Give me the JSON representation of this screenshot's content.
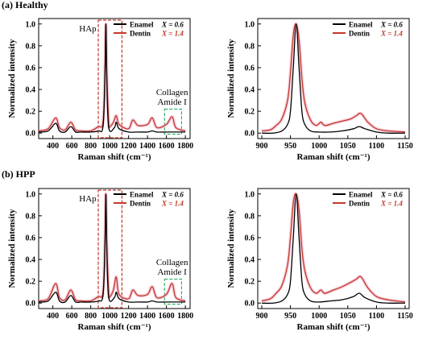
{
  "colors": {
    "enamel": "#000000",
    "dentin": "#c0392b",
    "band": "#f3a6bf",
    "peak_box": "#c0392b",
    "collagen_box": "#27ae60"
  },
  "sections": [
    {
      "label": "(a) Healthy",
      "left": {
        "hap_label": "HAp",
        "collagen_label": "Collagen",
        "amide_label": "Amide I"
      },
      "legend": {
        "enamel": "Enamel",
        "enamel_x": "X = 0.6",
        "dentin": "Dentin",
        "dentin_x": "X = 1.4"
      }
    },
    {
      "label": "(b) HPP",
      "left": {
        "hap_label": "HAp",
        "collagen_label": "Collagen",
        "amide_label": "Amide I"
      },
      "legend": {
        "enamel": "Enamel",
        "enamel_x": "X = 0.6",
        "dentin": "Dentin",
        "dentin_x": "X = 1.4"
      }
    }
  ],
  "axes": {
    "ylabel": "Normalized intensity",
    "xlabel": "Raman shift (cm⁻¹)",
    "left_xticks": [
      "400",
      "600",
      "800",
      "1000",
      "1200",
      "1400",
      "1600",
      "1800"
    ],
    "right_xticks": [
      "900",
      "950",
      "1000",
      "1050",
      "1100",
      "1150"
    ],
    "yticks": [
      "0.0",
      "0.2",
      "0.4",
      "0.6",
      "0.8",
      "1.0"
    ]
  },
  "chart_data": [
    {
      "type": "line",
      "title": "(a) Healthy",
      "xlabel": "Raman shift (cm-1)",
      "ylabel": "Normalized intensity",
      "xlim": [
        250,
        1850
      ],
      "ylim": [
        -0.05,
        1.05
      ],
      "legend": "top-right",
      "annotations": [
        "HAp",
        "Collagen",
        "Amide I"
      ],
      "series": [
        {
          "name": "Enamel X = 0.6",
          "x": [
            250,
            350,
            430,
            470,
            530,
            590,
            640,
            700,
            800,
            880,
            930,
            950,
            960,
            970,
            990,
            1050,
            1070,
            1100,
            1200,
            1300,
            1400,
            1450,
            1500,
            1600,
            1660,
            1700,
            1800
          ],
          "y": [
            0.01,
            0.02,
            0.09,
            0.02,
            0.01,
            0.06,
            0.01,
            0.01,
            0.01,
            0.02,
            0.06,
            0.5,
            1.0,
            0.5,
            0.05,
            0.05,
            0.1,
            0.04,
            0.01,
            0.01,
            0.01,
            0.02,
            0.01,
            0.01,
            0.01,
            0.01,
            0.01
          ]
        },
        {
          "name": "Dentin X = 1.4",
          "x": [
            250,
            350,
            430,
            470,
            530,
            590,
            640,
            700,
            800,
            880,
            930,
            950,
            960,
            970,
            990,
            1003,
            1040,
            1070,
            1100,
            1200,
            1245,
            1300,
            1400,
            1450,
            1500,
            1600,
            1660,
            1700,
            1800
          ],
          "y": [
            0.02,
            0.04,
            0.14,
            0.05,
            0.03,
            0.1,
            0.03,
            0.02,
            0.02,
            0.06,
            0.1,
            0.55,
            1.0,
            0.55,
            0.1,
            0.06,
            0.1,
            0.16,
            0.08,
            0.04,
            0.12,
            0.07,
            0.08,
            0.14,
            0.05,
            0.08,
            0.15,
            0.05,
            0.02
          ]
        }
      ]
    },
    {
      "type": "line",
      "title": "(a) Healthy",
      "xlabel": "Raman shift (cm-1)",
      "ylabel": "Normalized intensity",
      "xlim": [
        893,
        1157
      ],
      "ylim": [
        -0.05,
        1.05
      ],
      "legend": "top-right",
      "series": [
        {
          "name": "Enamel X = 0.6",
          "x": [
            900,
            920,
            935,
            945,
            950,
            955,
            960,
            965,
            970,
            975,
            985,
            1000,
            1020,
            1040,
            1060,
            1070,
            1080,
            1100,
            1120,
            1150
          ],
          "y": [
            0.0,
            0.0,
            0.02,
            0.08,
            0.2,
            0.6,
            1.0,
            0.6,
            0.2,
            0.08,
            0.02,
            0.01,
            0.01,
            0.02,
            0.04,
            0.06,
            0.04,
            0.01,
            0.0,
            0.0
          ]
        },
        {
          "name": "Dentin X = 1.4",
          "x": [
            900,
            915,
            925,
            935,
            945,
            950,
            955,
            960,
            965,
            970,
            975,
            985,
            995,
            1003,
            1010,
            1025,
            1040,
            1055,
            1065,
            1073,
            1085,
            1100,
            1120,
            1150
          ],
          "y": [
            0.02,
            0.03,
            0.07,
            0.13,
            0.3,
            0.55,
            0.9,
            1.0,
            0.85,
            0.5,
            0.28,
            0.12,
            0.07,
            0.1,
            0.07,
            0.09,
            0.11,
            0.13,
            0.16,
            0.18,
            0.1,
            0.04,
            0.02,
            0.01
          ]
        }
      ]
    },
    {
      "type": "line",
      "title": "(b) HPP",
      "xlabel": "Raman shift (cm-1)",
      "ylabel": "Normalized intensity",
      "xlim": [
        250,
        1850
      ],
      "ylim": [
        -0.05,
        1.05
      ],
      "legend": "top-right",
      "annotations": [
        "HAp",
        "Collagen",
        "Amide I"
      ],
      "series": [
        {
          "name": "Enamel X = 0.6",
          "x": [
            250,
            350,
            430,
            470,
            530,
            590,
            640,
            700,
            800,
            880,
            930,
            950,
            960,
            970,
            990,
            1050,
            1070,
            1100,
            1200,
            1300,
            1400,
            1450,
            1500,
            1600,
            1660,
            1700,
            1800
          ],
          "y": [
            0.01,
            0.02,
            0.1,
            0.02,
            0.01,
            0.07,
            0.01,
            0.01,
            0.01,
            0.02,
            0.07,
            0.5,
            1.0,
            0.5,
            0.05,
            0.05,
            0.1,
            0.04,
            0.01,
            0.01,
            0.01,
            0.02,
            0.01,
            0.01,
            0.01,
            0.01,
            0.01
          ]
        },
        {
          "name": "Dentin X = 1.4",
          "x": [
            250,
            350,
            430,
            470,
            530,
            590,
            640,
            700,
            800,
            880,
            930,
            950,
            960,
            970,
            990,
            1003,
            1040,
            1070,
            1100,
            1200,
            1245,
            1300,
            1400,
            1450,
            1500,
            1600,
            1660,
            1700,
            1800
          ],
          "y": [
            0.02,
            0.04,
            0.18,
            0.05,
            0.03,
            0.12,
            0.03,
            0.02,
            0.02,
            0.06,
            0.1,
            0.55,
            1.0,
            0.55,
            0.1,
            0.06,
            0.12,
            0.24,
            0.08,
            0.04,
            0.12,
            0.07,
            0.08,
            0.15,
            0.05,
            0.08,
            0.18,
            0.05,
            0.02
          ]
        }
      ]
    },
    {
      "type": "line",
      "title": "(b) HPP",
      "xlabel": "Raman shift (cm-1)",
      "ylabel": "Normalized intensity",
      "xlim": [
        893,
        1157
      ],
      "ylim": [
        -0.05,
        1.05
      ],
      "legend": "top-right",
      "series": [
        {
          "name": "Enamel X = 0.6",
          "x": [
            900,
            920,
            935,
            945,
            950,
            955,
            960,
            965,
            970,
            975,
            985,
            1000,
            1020,
            1040,
            1060,
            1070,
            1080,
            1100,
            1120,
            1150
          ],
          "y": [
            0.0,
            0.0,
            0.02,
            0.08,
            0.2,
            0.6,
            1.0,
            0.6,
            0.2,
            0.08,
            0.02,
            0.01,
            0.02,
            0.03,
            0.06,
            0.09,
            0.05,
            0.01,
            0.0,
            0.0
          ]
        },
        {
          "name": "Dentin X = 1.4",
          "x": [
            900,
            915,
            925,
            935,
            945,
            950,
            955,
            960,
            965,
            970,
            975,
            985,
            995,
            1003,
            1010,
            1025,
            1040,
            1055,
            1065,
            1073,
            1085,
            1100,
            1120,
            1150
          ],
          "y": [
            0.02,
            0.04,
            0.09,
            0.16,
            0.35,
            0.6,
            0.92,
            1.0,
            0.85,
            0.5,
            0.3,
            0.14,
            0.09,
            0.12,
            0.09,
            0.12,
            0.15,
            0.19,
            0.22,
            0.24,
            0.14,
            0.06,
            0.03,
            0.01
          ]
        }
      ]
    }
  ]
}
